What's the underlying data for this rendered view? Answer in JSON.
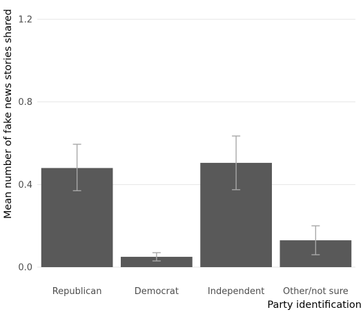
{
  "chart_data": {
    "type": "bar",
    "title": "",
    "xlabel": "Party identification",
    "ylabel": "Mean number of fake news stories shared",
    "categories": [
      "Republican",
      "Democrat",
      "Independent",
      "Other/not sure"
    ],
    "values": [
      0.48,
      0.05,
      0.505,
      0.13
    ],
    "error_low": [
      0.37,
      0.03,
      0.375,
      0.06
    ],
    "error_high": [
      0.595,
      0.07,
      0.635,
      0.2
    ],
    "ylim": [
      0,
      1.2
    ],
    "yticks": [
      0,
      0.4,
      0.8,
      1.2
    ],
    "ytick_labels": [
      "0.0",
      "0.4",
      "0.8",
      "1.2"
    ],
    "grid": true,
    "bar_color": "#595959",
    "error_bar_color": "#a8a8a8"
  }
}
